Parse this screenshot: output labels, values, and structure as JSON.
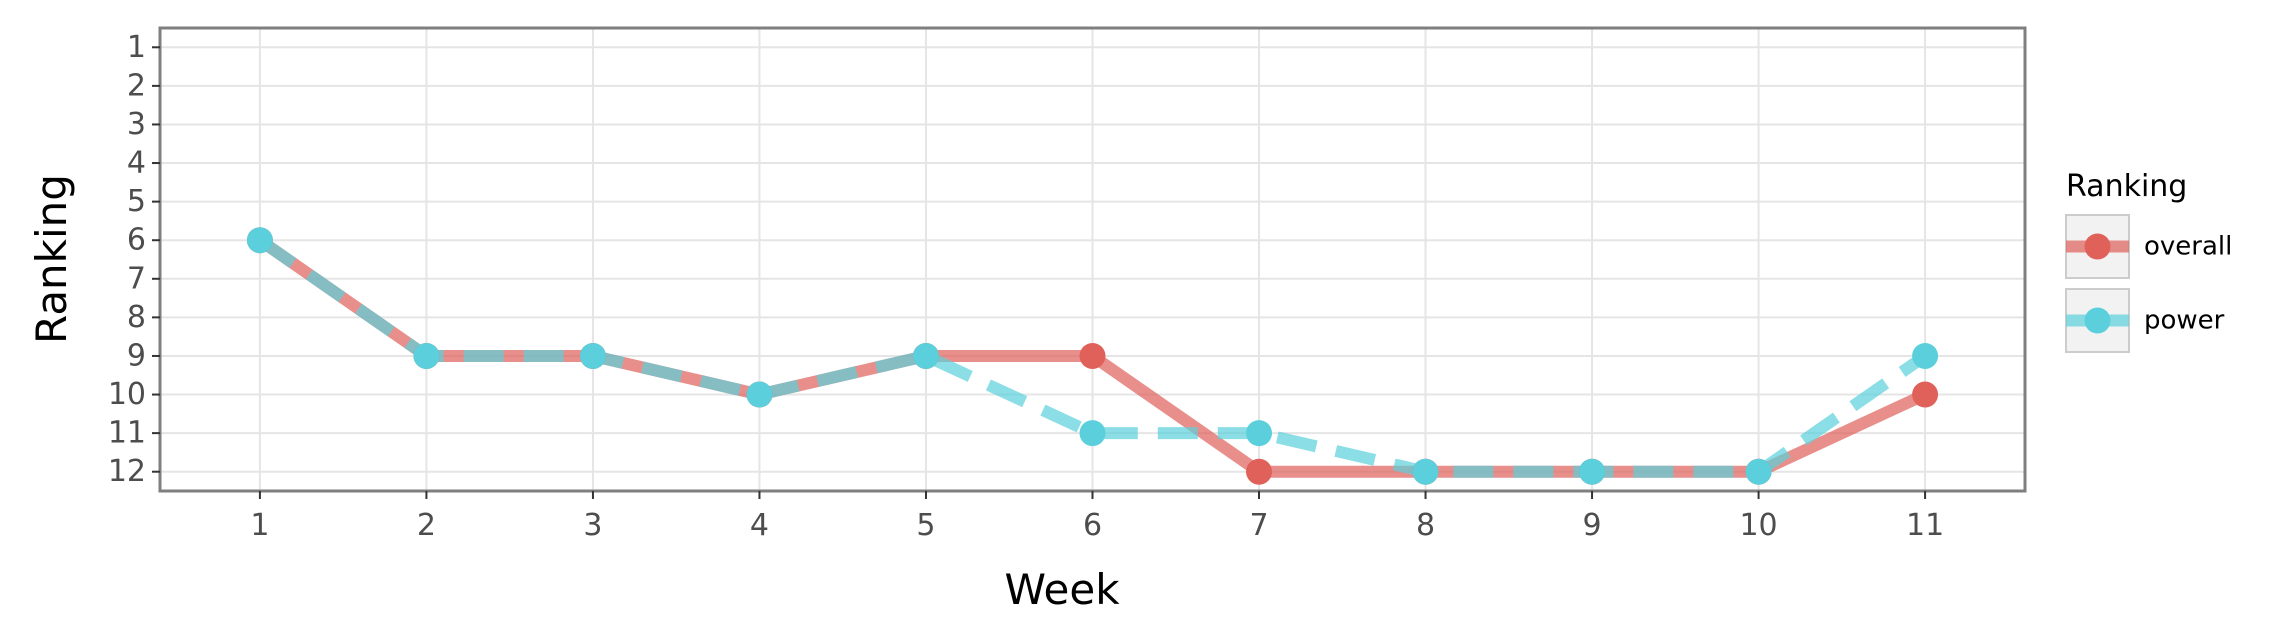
{
  "chart_data": {
    "type": "line",
    "xlabel": "Week",
    "ylabel": "Ranking",
    "x": [
      1,
      2,
      3,
      4,
      5,
      6,
      7,
      8,
      9,
      10,
      11
    ],
    "xlim": [
      0.4,
      11.6
    ],
    "ylim": [
      12.5,
      0.5
    ],
    "y_reversed": true,
    "x_ticks": [
      "1",
      "2",
      "3",
      "4",
      "5",
      "6",
      "7",
      "8",
      "9",
      "10",
      "11"
    ],
    "y_ticks": [
      "1",
      "2",
      "3",
      "4",
      "5",
      "6",
      "7",
      "8",
      "9",
      "10",
      "11",
      "12"
    ],
    "grid": true,
    "legend": {
      "title": "Ranking",
      "position": "right"
    },
    "series": [
      {
        "name": "overall",
        "values": [
          6,
          9,
          9,
          10,
          9,
          9,
          12,
          12,
          12,
          12,
          10
        ],
        "color": "#e0605a",
        "line_style": "solid"
      },
      {
        "name": "power",
        "values": [
          6,
          9,
          9,
          10,
          9,
          11,
          11,
          12,
          12,
          12,
          9
        ],
        "color": "#5bd0dc",
        "line_style": "dashed"
      }
    ]
  }
}
